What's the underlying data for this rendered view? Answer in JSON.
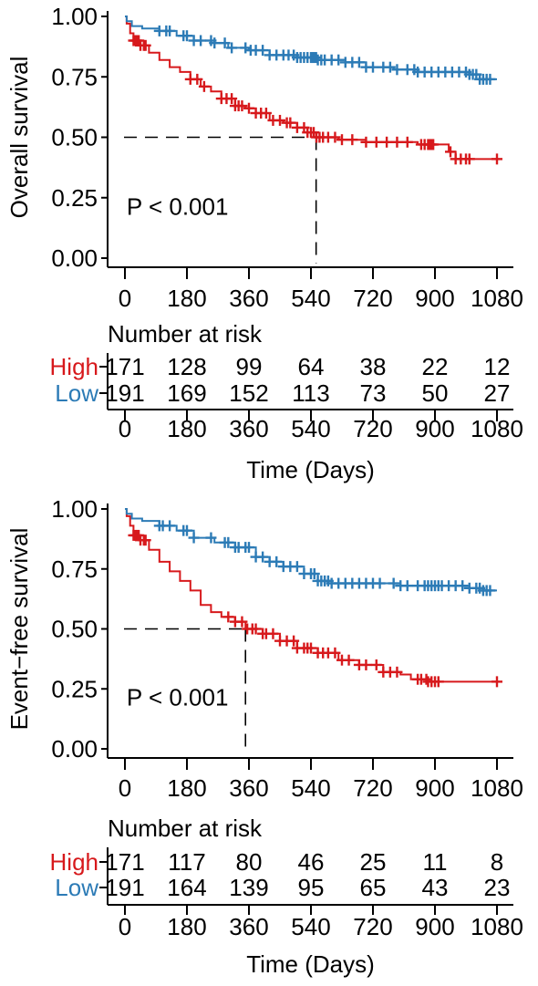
{
  "colors": {
    "high": "#d7191c",
    "low": "#2c7bb6",
    "axis": "#000000"
  },
  "chart_data": [
    {
      "type": "line",
      "title": "",
      "ylabel": "Overall survival",
      "xlabel": "",
      "xlim": [
        0,
        1080
      ],
      "ylim": [
        0,
        1
      ],
      "x_ticks": [
        "0",
        "180",
        "360",
        "540",
        "720",
        "900",
        "1080"
      ],
      "y_ticks": [
        "0.00",
        "0.25",
        "0.50",
        "0.75",
        "1.00"
      ],
      "annotation": "P < 0.001",
      "median_line": {
        "y": 0.5,
        "x": 555
      },
      "series": [
        {
          "name": "High",
          "color": "#d7191c",
          "points": [
            [
              0,
              1.0
            ],
            [
              5,
              0.97
            ],
            [
              15,
              0.93
            ],
            [
              25,
              0.9
            ],
            [
              45,
              0.88
            ],
            [
              70,
              0.85
            ],
            [
              100,
              0.82
            ],
            [
              130,
              0.79
            ],
            [
              160,
              0.77
            ],
            [
              190,
              0.74
            ],
            [
              220,
              0.71
            ],
            [
              250,
              0.69
            ],
            [
              280,
              0.66
            ],
            [
              320,
              0.63
            ],
            [
              350,
              0.62
            ],
            [
              380,
              0.6
            ],
            [
              420,
              0.57
            ],
            [
              460,
              0.56
            ],
            [
              500,
              0.54
            ],
            [
              530,
              0.52
            ],
            [
              555,
              0.5
            ],
            [
              620,
              0.49
            ],
            [
              700,
              0.48
            ],
            [
              780,
              0.48
            ],
            [
              850,
              0.47
            ],
            [
              940,
              0.44
            ],
            [
              960,
              0.41
            ],
            [
              1080,
              0.41
            ]
          ],
          "censor_x": [
            25,
            30,
            35,
            40,
            45,
            55,
            60,
            190,
            210,
            230,
            280,
            295,
            310,
            320,
            330,
            340,
            360,
            380,
            395,
            410,
            430,
            450,
            470,
            480,
            500,
            520,
            530,
            540,
            548,
            556,
            565,
            575,
            590,
            610,
            630,
            660,
            700,
            730,
            760,
            790,
            820,
            860,
            870,
            880,
            885,
            890,
            895,
            945,
            960,
            975,
            990,
            1000,
            1080
          ]
        },
        {
          "name": "Low",
          "color": "#2c7bb6",
          "points": [
            [
              0,
              1.0
            ],
            [
              5,
              0.98
            ],
            [
              20,
              0.96
            ],
            [
              50,
              0.95
            ],
            [
              100,
              0.94
            ],
            [
              150,
              0.92
            ],
            [
              200,
              0.9
            ],
            [
              260,
              0.89
            ],
            [
              300,
              0.87
            ],
            [
              360,
              0.86
            ],
            [
              420,
              0.84
            ],
            [
              500,
              0.83
            ],
            [
              560,
              0.82
            ],
            [
              640,
              0.81
            ],
            [
              700,
              0.79
            ],
            [
              780,
              0.78
            ],
            [
              850,
              0.77
            ],
            [
              950,
              0.77
            ],
            [
              1000,
              0.76
            ],
            [
              1030,
              0.74
            ],
            [
              1080,
              0.74
            ]
          ],
          "censor_x": [
            100,
            120,
            130,
            170,
            180,
            200,
            220,
            250,
            260,
            290,
            310,
            350,
            365,
            380,
            400,
            420,
            440,
            460,
            475,
            490,
            500,
            510,
            520,
            530,
            540,
            545,
            550,
            555,
            560,
            570,
            580,
            600,
            620,
            640,
            660,
            680,
            700,
            720,
            750,
            770,
            790,
            820,
            840,
            850,
            870,
            890,
            910,
            930,
            950,
            970,
            990,
            1000,
            1010,
            1020,
            1030,
            1040,
            1050,
            1060
          ]
        }
      ],
      "risk_table": {
        "title": "Number at risk",
        "groups": [
          {
            "name": "High",
            "color": "#d7191c",
            "values": [
              "171",
              "128",
              "99",
              "64",
              "38",
              "22",
              "12"
            ]
          },
          {
            "name": "Low",
            "color": "#2c7bb6",
            "values": [
              "191",
              "169",
              "152",
              "113",
              "73",
              "50",
              "27"
            ]
          }
        ],
        "x_ticks": [
          "0",
          "180",
          "360",
          "540",
          "720",
          "900",
          "1080"
        ],
        "xlabel": "Time (Days)"
      }
    },
    {
      "type": "line",
      "title": "",
      "ylabel": "Event−free survival",
      "xlabel": "",
      "xlim": [
        0,
        1080
      ],
      "ylim": [
        0,
        1
      ],
      "x_ticks": [
        "0",
        "180",
        "360",
        "540",
        "720",
        "900",
        "1080"
      ],
      "y_ticks": [
        "0.00",
        "0.25",
        "0.50",
        "0.75",
        "1.00"
      ],
      "annotation": "P < 0.001",
      "median_line": {
        "y": 0.5,
        "x": 350
      },
      "series": [
        {
          "name": "High",
          "color": "#d7191c",
          "points": [
            [
              0,
              1.0
            ],
            [
              5,
              0.97
            ],
            [
              15,
              0.93
            ],
            [
              25,
              0.89
            ],
            [
              45,
              0.87
            ],
            [
              70,
              0.83
            ],
            [
              100,
              0.78
            ],
            [
              130,
              0.74
            ],
            [
              160,
              0.7
            ],
            [
              190,
              0.66
            ],
            [
              220,
              0.6
            ],
            [
              250,
              0.57
            ],
            [
              280,
              0.55
            ],
            [
              320,
              0.53
            ],
            [
              350,
              0.5
            ],
            [
              400,
              0.48
            ],
            [
              450,
              0.45
            ],
            [
              500,
              0.42
            ],
            [
              560,
              0.4
            ],
            [
              620,
              0.37
            ],
            [
              680,
              0.35
            ],
            [
              750,
              0.32
            ],
            [
              800,
              0.31
            ],
            [
              830,
              0.29
            ],
            [
              880,
              0.28
            ],
            [
              1080,
              0.28
            ]
          ],
          "censor_x": [
            25,
            30,
            35,
            40,
            45,
            55,
            60,
            300,
            320,
            340,
            355,
            370,
            380,
            400,
            410,
            430,
            450,
            470,
            490,
            500,
            520,
            530,
            540,
            560,
            575,
            590,
            610,
            630,
            650,
            680,
            700,
            730,
            750,
            770,
            790,
            850,
            860,
            875,
            880,
            890,
            900,
            910,
            1080
          ]
        },
        {
          "name": "Low",
          "color": "#2c7bb6",
          "points": [
            [
              0,
              1.0
            ],
            [
              5,
              0.98
            ],
            [
              20,
              0.96
            ],
            [
              50,
              0.95
            ],
            [
              100,
              0.93
            ],
            [
              150,
              0.91
            ],
            [
              200,
              0.88
            ],
            [
              260,
              0.86
            ],
            [
              320,
              0.84
            ],
            [
              380,
              0.8
            ],
            [
              420,
              0.78
            ],
            [
              460,
              0.76
            ],
            [
              520,
              0.73
            ],
            [
              560,
              0.7
            ],
            [
              600,
              0.69
            ],
            [
              700,
              0.69
            ],
            [
              800,
              0.68
            ],
            [
              900,
              0.68
            ],
            [
              1000,
              0.67
            ],
            [
              1040,
              0.66
            ],
            [
              1080,
              0.66
            ]
          ],
          "censor_x": [
            100,
            110,
            130,
            170,
            180,
            200,
            250,
            290,
            300,
            320,
            330,
            350,
            360,
            380,
            400,
            420,
            440,
            460,
            480,
            500,
            520,
            540,
            550,
            560,
            570,
            580,
            590,
            600,
            620,
            640,
            660,
            680,
            700,
            720,
            740,
            780,
            800,
            820,
            850,
            870,
            880,
            890,
            900,
            910,
            920,
            940,
            960,
            980,
            1000,
            1020,
            1030,
            1040,
            1050,
            1060
          ]
        }
      ],
      "risk_table": {
        "title": "Number at risk",
        "groups": [
          {
            "name": "High",
            "color": "#d7191c",
            "values": [
              "171",
              "117",
              "80",
              "46",
              "25",
              "11",
              "8"
            ]
          },
          {
            "name": "Low",
            "color": "#2c7bb6",
            "values": [
              "191",
              "164",
              "139",
              "95",
              "65",
              "43",
              "23"
            ]
          }
        ],
        "x_ticks": [
          "0",
          "180",
          "360",
          "540",
          "720",
          "900",
          "1080"
        ],
        "xlabel": "Time (Days)"
      }
    }
  ]
}
